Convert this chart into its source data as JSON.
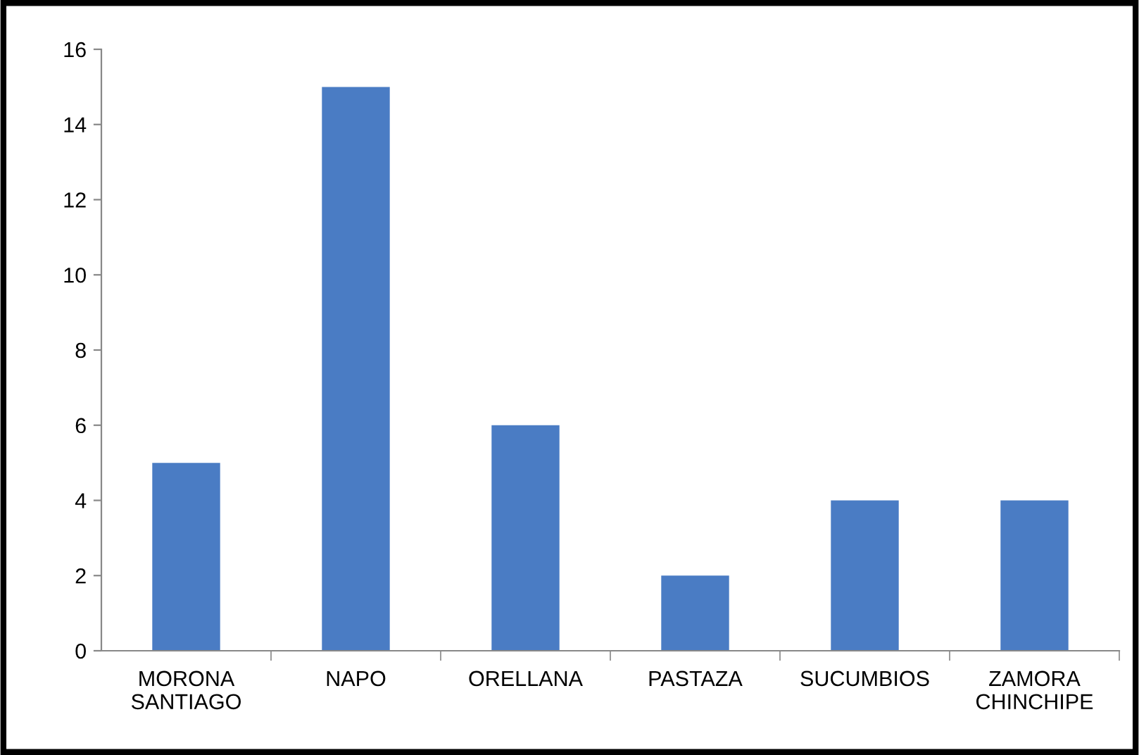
{
  "chart_data": {
    "type": "bar",
    "categories": [
      "MORONA\nSANTIAGO",
      "NAPO",
      "ORELLANA",
      "PASTAZA",
      "SUCUMBIOS",
      "ZAMORA\nCHINCHIPE"
    ],
    "values": [
      5,
      15,
      6,
      2,
      4,
      4
    ],
    "color": "#4a7cc4",
    "ylim": [
      0,
      16
    ],
    "yticks": [
      0,
      2,
      4,
      6,
      8,
      10,
      12,
      14,
      16
    ],
    "grid": false
  }
}
